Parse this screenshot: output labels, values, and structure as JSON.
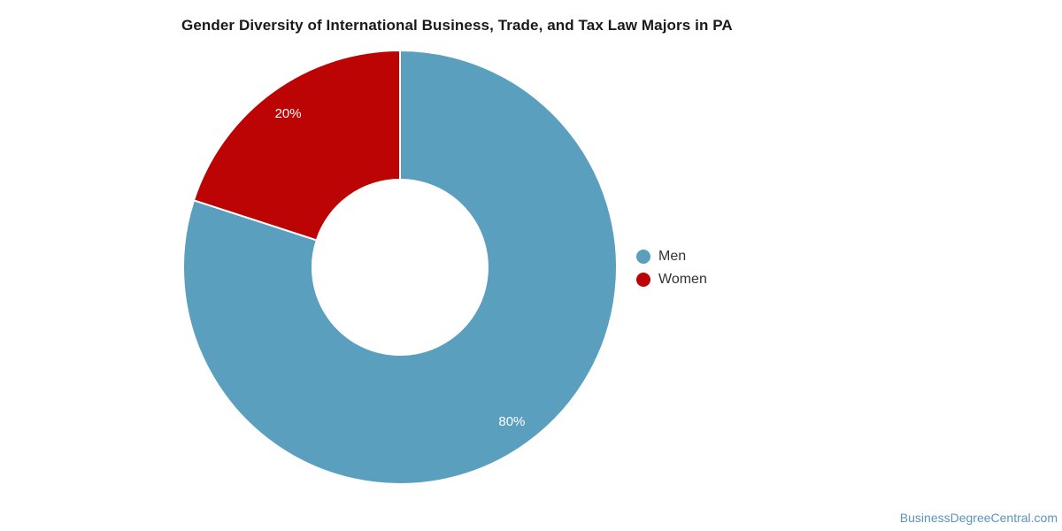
{
  "chart_data": {
    "type": "pie",
    "subtype": "donut",
    "title": "Gender Diversity of International Business, Trade, and Tax Law Majors in PA",
    "categories": [
      "Men",
      "Women"
    ],
    "values": [
      80,
      20
    ],
    "unit": "percent",
    "slice_labels": [
      "80%",
      "20%"
    ],
    "colors": [
      "#5AA0BE",
      "#BC0404"
    ],
    "slice_border_color": "#FFFFFF",
    "start_angle_deg": 0,
    "direction": "clockwise",
    "inner_radius_ratio": 0.4,
    "legend_position": "right",
    "grid": false
  },
  "legend": {
    "items": [
      {
        "label": "Men",
        "color": "#5AA0BE"
      },
      {
        "label": "Women",
        "color": "#BC0404"
      }
    ]
  },
  "watermark": {
    "text": "BusinessDegreeCentral.com",
    "color": "#5A94BC"
  }
}
